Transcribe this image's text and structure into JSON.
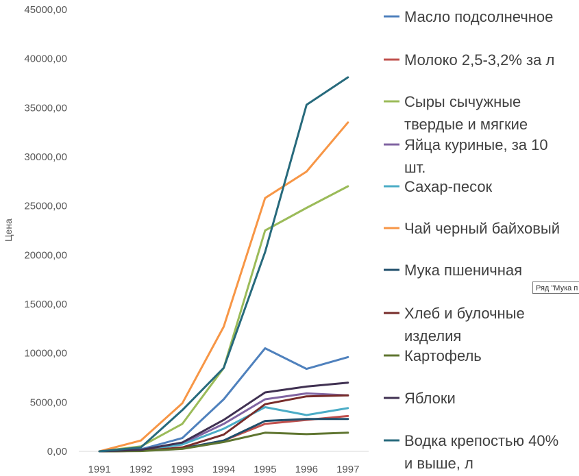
{
  "chart_data": {
    "type": "line",
    "title": "",
    "xlabel": "",
    "ylabel": "Цена",
    "ylim": [
      0,
      45000
    ],
    "yticks": [
      "0,00",
      "5000,00",
      "10000,00",
      "15000,00",
      "20000,00",
      "25000,00",
      "30000,00",
      "35000,00",
      "40000,00",
      "45000,00"
    ],
    "x": [
      "1991",
      "1992",
      "1993",
      "1994",
      "1995",
      "1996",
      "1997"
    ],
    "grid": false,
    "legend_position": "right",
    "series": [
      {
        "name": "Масло подсолнечное",
        "legend_lines": [
          "Масло подсолнечное"
        ],
        "color": "#4F81BD",
        "values": [
          0,
          200,
          1350,
          5300,
          10500,
          8400,
          9600
        ]
      },
      {
        "name": "Молоко 2,5-3,2%  за л",
        "legend_lines": [
          "Молоко 2,5-3,2%  за л"
        ],
        "color": "#C0504D",
        "values": [
          0,
          50,
          300,
          1100,
          2800,
          3200,
          3600
        ]
      },
      {
        "name": "Сыры сычужные твердые и мягкие",
        "legend_lines": [
          "Сыры сычужные",
          "твердые и мягкие"
        ],
        "color": "#9BBB59",
        "values": [
          0,
          500,
          2800,
          8500,
          22500,
          24800,
          27000
        ]
      },
      {
        "name": "Яйца куриные, за 10 шт.",
        "legend_lines": [
          "Яйца куриные, за 10",
          "шт."
        ],
        "color": "#8064A2",
        "values": [
          0,
          100,
          800,
          2800,
          5300,
          5900,
          5700
        ]
      },
      {
        "name": "Сахар-песок",
        "legend_lines": [
          "Сахар-песок"
        ],
        "color": "#4BACC6",
        "values": [
          0,
          100,
          700,
          2300,
          4500,
          3700,
          4400
        ]
      },
      {
        "name": "Чай черный байховый",
        "legend_lines": [
          "Чай черный байховый"
        ],
        "color": "#F79646",
        "values": [
          0,
          1100,
          4900,
          12700,
          25800,
          28500,
          33500
        ]
      },
      {
        "name": "Мука пшеничная",
        "legend_lines": [
          "Мука пшеничная"
        ],
        "color": "#1F4E6B",
        "values": [
          0,
          50,
          300,
          1100,
          3100,
          3300,
          3300
        ]
      },
      {
        "name": "Хлеб и булочные изделия",
        "legend_lines": [
          "Хлеб и булочные",
          "изделия"
        ],
        "color": "#772C2A",
        "values": [
          0,
          50,
          400,
          1700,
          4800,
          5600,
          5700
        ]
      },
      {
        "name": "Картофель",
        "legend_lines": [
          "Картофель"
        ],
        "color": "#5F7530",
        "values": [
          0,
          30,
          250,
          950,
          1900,
          1750,
          1900
        ]
      },
      {
        "name": "Яблоки",
        "legend_lines": [
          "Яблоки"
        ],
        "color": "#403152",
        "values": [
          0,
          150,
          900,
          3200,
          6000,
          6600,
          7000
        ]
      },
      {
        "name": "Водка крепостью 40% и выше, л",
        "legend_lines": [
          "Водка крепостью 40%",
          "и выше, л"
        ],
        "color": "#276A7C",
        "values": [
          0,
          400,
          4200,
          8500,
          20300,
          35300,
          38100
        ]
      }
    ]
  },
  "tooltip": {
    "text": "Ряд \"Мука п"
  }
}
